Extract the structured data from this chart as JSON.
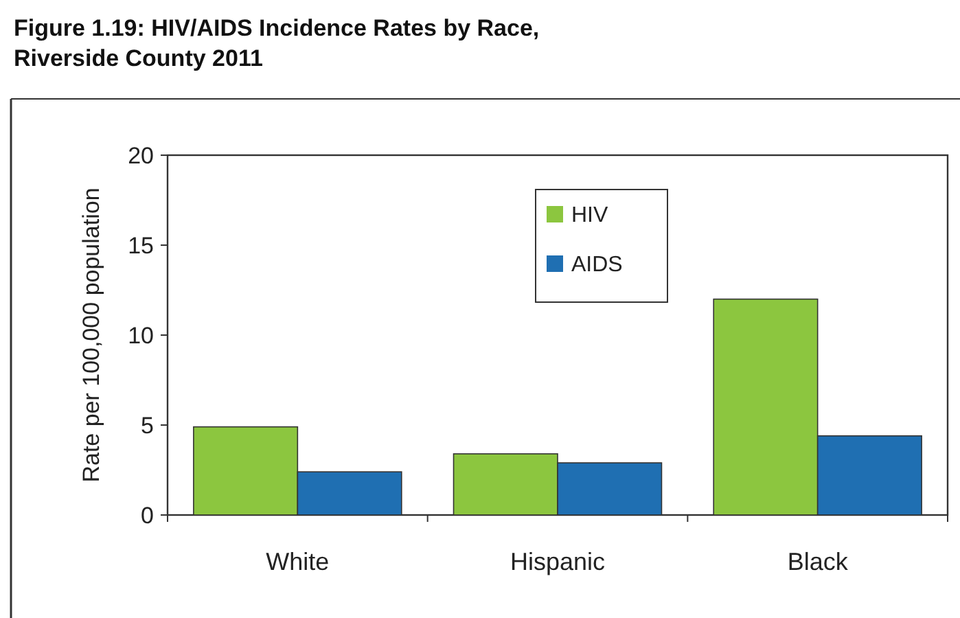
{
  "chart_data": {
    "type": "bar",
    "title": "Figure 1.19: HIV/AIDS Incidence Rates by Race,\nRiverside County 2011",
    "ylabel": "Rate per 100,000 population",
    "categories": [
      "White",
      "Hispanic",
      "Black"
    ],
    "series": [
      {
        "name": "HIV",
        "color": "#8cc63f",
        "values": [
          4.9,
          3.4,
          12.0
        ]
      },
      {
        "name": "AIDS",
        "color": "#1f6fb2",
        "values": [
          2.4,
          2.9,
          4.4
        ]
      }
    ],
    "ylim": [
      0,
      20
    ],
    "yticks": [
      0,
      5,
      10,
      15,
      20
    ],
    "legend": "top right"
  }
}
